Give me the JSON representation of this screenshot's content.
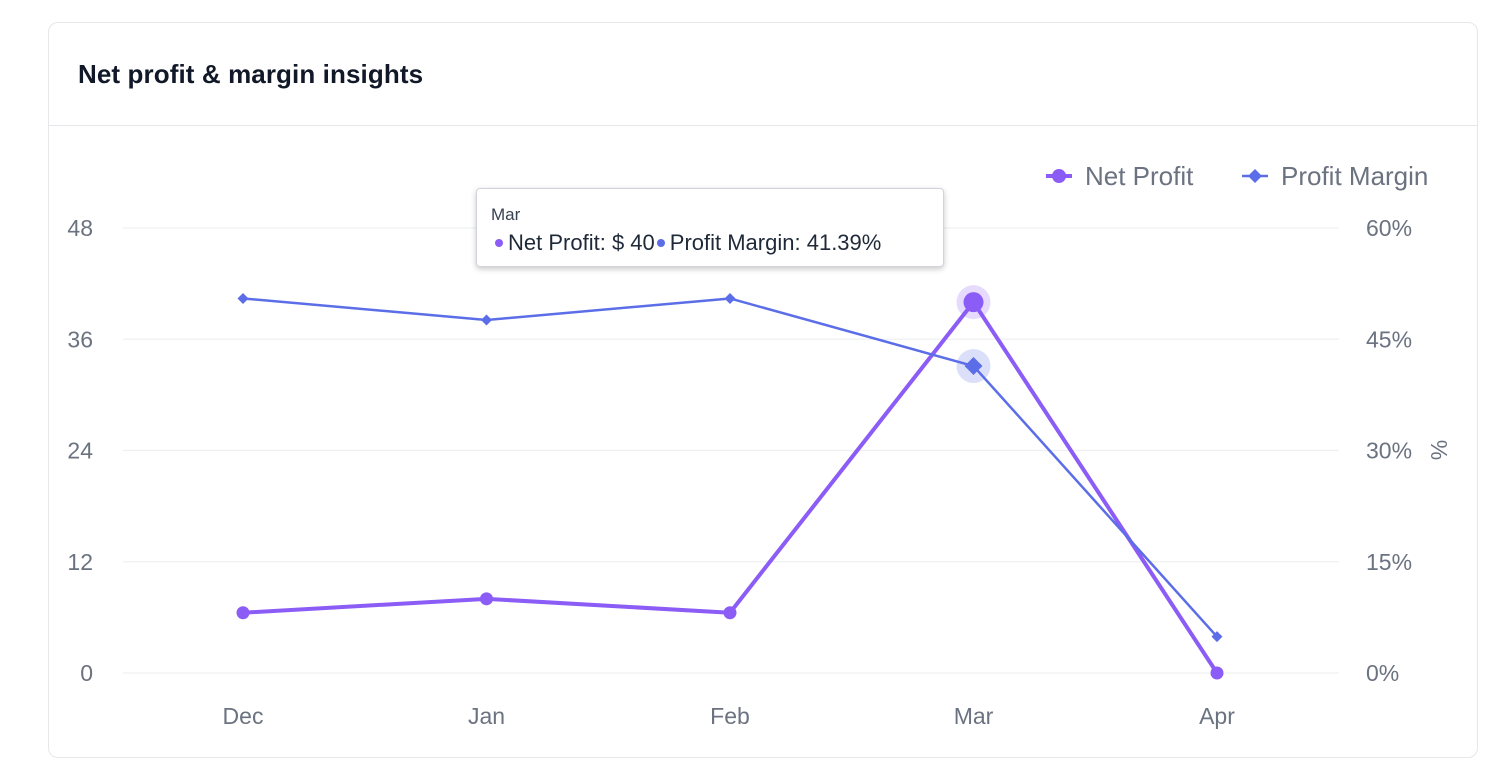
{
  "card": {
    "title": "Net profit & margin insights"
  },
  "colors": {
    "net_profit": "#8b5cf6",
    "profit_margin": "#5b6ee8",
    "grid": "#eef0f3",
    "axis_text": "#6b7280"
  },
  "tooltip": {
    "title": "Mar",
    "net_profit_label": "Net Profit:",
    "net_profit_value": "$ 40",
    "profit_margin_label": "Profit Margin:",
    "profit_margin_value": "41.39%"
  },
  "chart_data": {
    "type": "line",
    "categories": [
      "Dec",
      "Jan",
      "Feb",
      "Mar",
      "Apr"
    ],
    "series": [
      {
        "name": "Net Profit",
        "axis": "left",
        "marker": "circle",
        "values": [
          6.5,
          8,
          6.5,
          40,
          0
        ]
      },
      {
        "name": "Profit Margin",
        "axis": "right",
        "marker": "diamond",
        "values": [
          50.5,
          47.6,
          50.5,
          41.39,
          4.9
        ]
      }
    ],
    "y_left": {
      "ticks": [
        0,
        12,
        24,
        36,
        48
      ],
      "tick_labels": [
        "0",
        "12",
        "24",
        "36",
        "48"
      ],
      "ylim": [
        0,
        48
      ]
    },
    "y_right": {
      "ticks": [
        0,
        15,
        30,
        45,
        60
      ],
      "tick_labels": [
        "0%",
        "15%",
        "30%",
        "45%",
        "60%"
      ],
      "ylim": [
        0,
        60
      ],
      "label": "%"
    },
    "legend": {
      "placement": "top-right",
      "items": [
        "Net Profit",
        "Profit Margin"
      ]
    },
    "grid": true,
    "highlighted_category": "Mar"
  }
}
